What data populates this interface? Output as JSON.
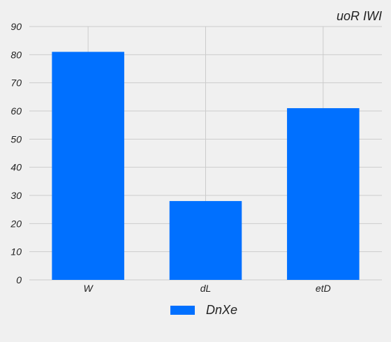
{
  "chart_data": {
    "type": "bar",
    "title": "uoR IWI",
    "categories": [
      "W",
      "dL",
      "etD"
    ],
    "series": [
      {
        "name": "DnXe",
        "values": [
          81,
          28,
          61
        ],
        "color": "#0070ff"
      }
    ],
    "ylim": [
      0,
      90
    ],
    "yticks": [
      0,
      10,
      20,
      30,
      40,
      50,
      60,
      70,
      80,
      90
    ],
    "grid": true,
    "legend_position": "bottom-center",
    "background": "#f0f0f0",
    "grid_color": "#cbcbcb"
  }
}
